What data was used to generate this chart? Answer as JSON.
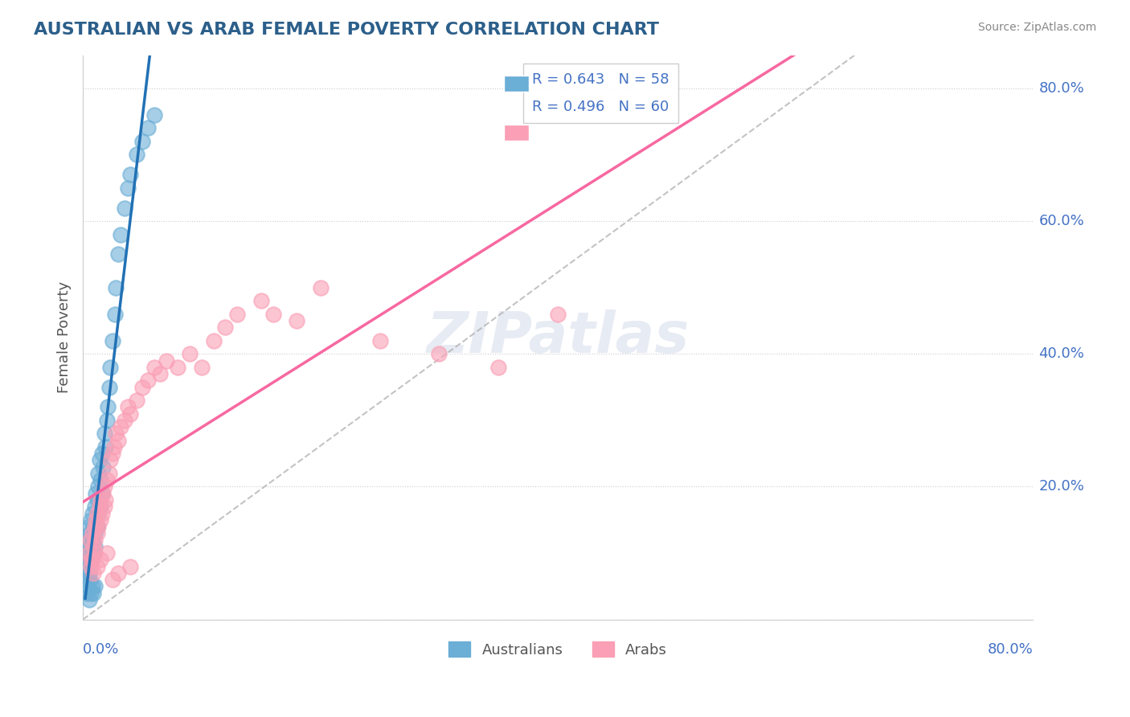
{
  "title": "AUSTRALIAN VS ARAB FEMALE POVERTY CORRELATION CHART",
  "source": "Source: ZipAtlas.com",
  "ylabel": "Female Poverty",
  "aus_R": "R = 0.643",
  "aus_N": "N = 58",
  "arab_R": "R = 0.496",
  "arab_N": "N = 60",
  "aus_color": "#6baed6",
  "arab_color": "#fa9fb5",
  "aus_line_color": "#2171b5",
  "arab_line_color": "#f768a1",
  "background_color": "#ffffff",
  "grid_color": "#cccccc",
  "title_color": "#2c5f8a",
  "axis_color": "#4472c4",
  "aus_x": [
    0.002,
    0.003,
    0.004,
    0.004,
    0.005,
    0.005,
    0.005,
    0.006,
    0.006,
    0.007,
    0.007,
    0.008,
    0.008,
    0.009,
    0.009,
    0.01,
    0.01,
    0.01,
    0.011,
    0.011,
    0.012,
    0.012,
    0.013,
    0.013,
    0.013,
    0.014,
    0.014,
    0.015,
    0.015,
    0.016,
    0.016,
    0.017,
    0.018,
    0.019,
    0.02,
    0.021,
    0.022,
    0.023,
    0.025,
    0.027,
    0.028,
    0.03,
    0.032,
    0.035,
    0.038,
    0.04,
    0.045,
    0.05,
    0.055,
    0.06,
    0.003,
    0.004,
    0.005,
    0.006,
    0.007,
    0.008,
    0.009,
    0.01
  ],
  "aus_y": [
    0.08,
    0.12,
    0.06,
    0.09,
    0.1,
    0.14,
    0.07,
    0.11,
    0.13,
    0.09,
    0.15,
    0.12,
    0.16,
    0.1,
    0.14,
    0.13,
    0.17,
    0.11,
    0.15,
    0.19,
    0.14,
    0.18,
    0.16,
    0.2,
    0.22,
    0.18,
    0.24,
    0.17,
    0.21,
    0.19,
    0.25,
    0.23,
    0.28,
    0.26,
    0.3,
    0.32,
    0.35,
    0.38,
    0.42,
    0.46,
    0.5,
    0.55,
    0.58,
    0.62,
    0.65,
    0.67,
    0.7,
    0.72,
    0.74,
    0.76,
    0.04,
    0.05,
    0.03,
    0.06,
    0.04,
    0.05,
    0.04,
    0.05
  ],
  "arab_x": [
    0.005,
    0.006,
    0.007,
    0.008,
    0.009,
    0.01,
    0.01,
    0.011,
    0.012,
    0.012,
    0.013,
    0.014,
    0.015,
    0.015,
    0.016,
    0.017,
    0.018,
    0.018,
    0.019,
    0.02,
    0.022,
    0.023,
    0.025,
    0.026,
    0.028,
    0.03,
    0.032,
    0.035,
    0.038,
    0.04,
    0.045,
    0.05,
    0.055,
    0.06,
    0.065,
    0.07,
    0.08,
    0.09,
    0.1,
    0.11,
    0.12,
    0.13,
    0.15,
    0.16,
    0.18,
    0.2,
    0.25,
    0.3,
    0.35,
    0.4,
    0.007,
    0.008,
    0.009,
    0.01,
    0.012,
    0.015,
    0.02,
    0.025,
    0.03,
    0.04
  ],
  "arab_y": [
    0.1,
    0.12,
    0.09,
    0.13,
    0.11,
    0.14,
    0.12,
    0.15,
    0.13,
    0.16,
    0.14,
    0.17,
    0.15,
    0.18,
    0.16,
    0.19,
    0.17,
    0.2,
    0.18,
    0.21,
    0.22,
    0.24,
    0.25,
    0.26,
    0.28,
    0.27,
    0.29,
    0.3,
    0.32,
    0.31,
    0.33,
    0.35,
    0.36,
    0.38,
    0.37,
    0.39,
    0.38,
    0.4,
    0.38,
    0.42,
    0.44,
    0.46,
    0.48,
    0.46,
    0.45,
    0.5,
    0.42,
    0.4,
    0.38,
    0.46,
    0.08,
    0.09,
    0.07,
    0.1,
    0.08,
    0.09,
    0.1,
    0.06,
    0.07,
    0.08
  ],
  "xmin": 0.0,
  "xmax": 0.8,
  "ymin": 0.0,
  "ymax": 0.85
}
